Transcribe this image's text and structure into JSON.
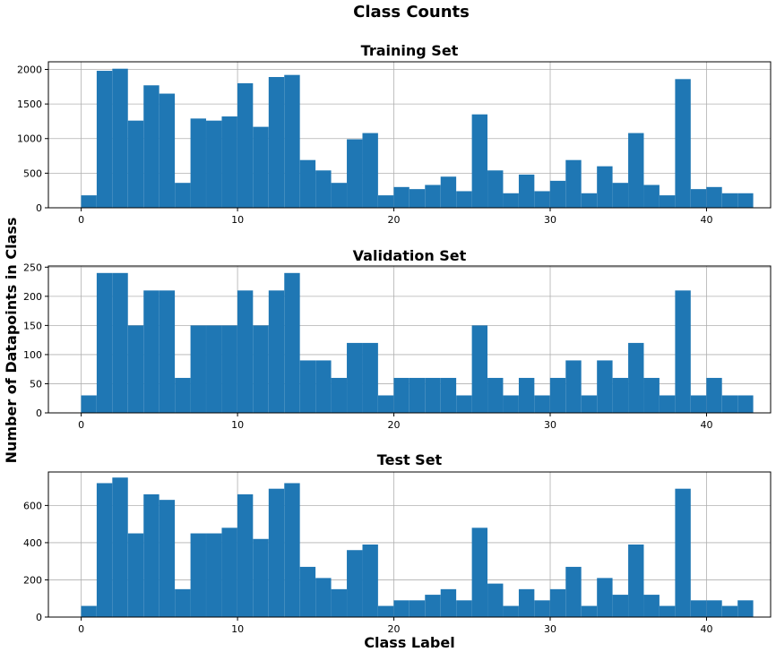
{
  "figure": {
    "title": "Class Counts",
    "ylabel": "Number of Datapoints in Class",
    "xlabel": "Class Label"
  },
  "colors": {
    "bar": "#1f77b4",
    "grid": "#b0b0b0",
    "axes": "#000000"
  },
  "chart_data": [
    {
      "type": "bar",
      "title": "Training Set",
      "xlabel": "",
      "ylabel": "",
      "xlim": [
        -2.1,
        44.1
      ],
      "ylim": [
        0,
        2110
      ],
      "grid": true,
      "xticks": [
        "0",
        "10",
        "20",
        "30",
        "40"
      ],
      "yticks": [
        "0",
        "500",
        "1000",
        "1500",
        "2000"
      ],
      "categories": [
        0,
        1,
        2,
        3,
        4,
        5,
        6,
        7,
        8,
        9,
        10,
        11,
        12,
        13,
        14,
        15,
        16,
        17,
        18,
        19,
        20,
        21,
        22,
        23,
        24,
        25,
        26,
        27,
        28,
        29,
        30,
        31,
        32,
        33,
        34,
        35,
        36,
        37,
        38,
        39,
        40,
        41,
        42
      ],
      "values": [
        180,
        1980,
        2010,
        1260,
        1770,
        1650,
        360,
        1290,
        1260,
        1320,
        1800,
        1170,
        1890,
        1920,
        690,
        540,
        360,
        990,
        1080,
        180,
        300,
        270,
        330,
        450,
        240,
        1350,
        540,
        210,
        480,
        240,
        390,
        690,
        210,
        600,
        360,
        1080,
        330,
        180,
        1860,
        270,
        300,
        210,
        210
      ]
    },
    {
      "type": "bar",
      "title": "Validation Set",
      "xlabel": "",
      "ylabel": "",
      "xlim": [
        -2.1,
        44.1
      ],
      "ylim": [
        0,
        252
      ],
      "grid": true,
      "xticks": [
        "0",
        "10",
        "20",
        "30",
        "40"
      ],
      "yticks": [
        "0",
        "50",
        "100",
        "150",
        "200",
        "250"
      ],
      "categories": [
        0,
        1,
        2,
        3,
        4,
        5,
        6,
        7,
        8,
        9,
        10,
        11,
        12,
        13,
        14,
        15,
        16,
        17,
        18,
        19,
        20,
        21,
        22,
        23,
        24,
        25,
        26,
        27,
        28,
        29,
        30,
        31,
        32,
        33,
        34,
        35,
        36,
        37,
        38,
        39,
        40,
        41,
        42
      ],
      "values": [
        30,
        240,
        240,
        150,
        210,
        210,
        60,
        150,
        150,
        150,
        210,
        150,
        210,
        240,
        90,
        90,
        60,
        120,
        120,
        30,
        60,
        60,
        60,
        60,
        30,
        150,
        60,
        30,
        60,
        30,
        60,
        90,
        30,
        90,
        60,
        120,
        60,
        30,
        210,
        30,
        60,
        30,
        30
      ]
    },
    {
      "type": "bar",
      "title": "Test Set",
      "xlabel": "Class Label",
      "ylabel": "",
      "xlim": [
        -2.1,
        44.1
      ],
      "ylim": [
        0,
        780
      ],
      "grid": true,
      "xticks": [
        "0",
        "10",
        "20",
        "30",
        "40"
      ],
      "yticks": [
        "0",
        "200",
        "400",
        "600"
      ],
      "categories": [
        0,
        1,
        2,
        3,
        4,
        5,
        6,
        7,
        8,
        9,
        10,
        11,
        12,
        13,
        14,
        15,
        16,
        17,
        18,
        19,
        20,
        21,
        22,
        23,
        24,
        25,
        26,
        27,
        28,
        29,
        30,
        31,
        32,
        33,
        34,
        35,
        36,
        37,
        38,
        39,
        40,
        41,
        42
      ],
      "values": [
        60,
        720,
        750,
        450,
        660,
        630,
        150,
        450,
        450,
        480,
        660,
        420,
        690,
        720,
        270,
        210,
        150,
        360,
        390,
        60,
        90,
        90,
        120,
        150,
        90,
        480,
        180,
        60,
        150,
        90,
        150,
        270,
        60,
        210,
        120,
        390,
        120,
        60,
        690,
        90,
        90,
        60,
        90
      ]
    }
  ]
}
